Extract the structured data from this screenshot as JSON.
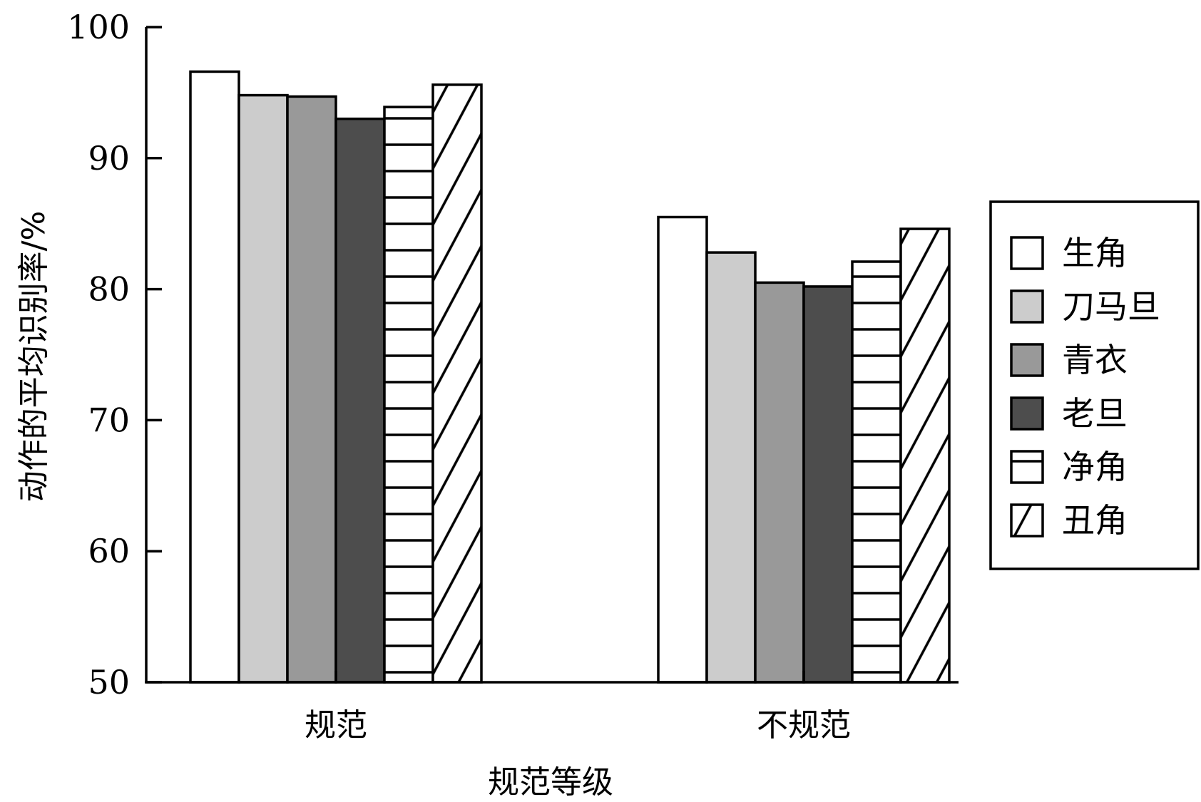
{
  "chart_data": {
    "type": "bar",
    "xlabel": "规范等级",
    "ylabel": "动作的平均识别率/%",
    "ylim": [
      50,
      100
    ],
    "yticks": [
      50,
      60,
      70,
      80,
      90,
      100
    ],
    "grid": false,
    "legend_position": "right",
    "categories": [
      "规范",
      "不规范"
    ],
    "series": [
      {
        "name": "生角",
        "fill": "#ffffff",
        "pattern": "none",
        "values": [
          96.6,
          85.5
        ]
      },
      {
        "name": "刀马旦",
        "fill": "#cccccc",
        "pattern": "none",
        "values": [
          94.8,
          82.8
        ]
      },
      {
        "name": "青衣",
        "fill": "#999999",
        "pattern": "none",
        "values": [
          94.7,
          80.5
        ]
      },
      {
        "name": "老旦",
        "fill": "#4d4d4d",
        "pattern": "none",
        "values": [
          93.0,
          80.2
        ]
      },
      {
        "name": "净角",
        "fill": "#ffffff",
        "pattern": "horizontal",
        "values": [
          93.9,
          82.1
        ]
      },
      {
        "name": "丑角",
        "fill": "#ffffff",
        "pattern": "diagonal",
        "values": [
          95.6,
          84.6
        ]
      }
    ]
  }
}
